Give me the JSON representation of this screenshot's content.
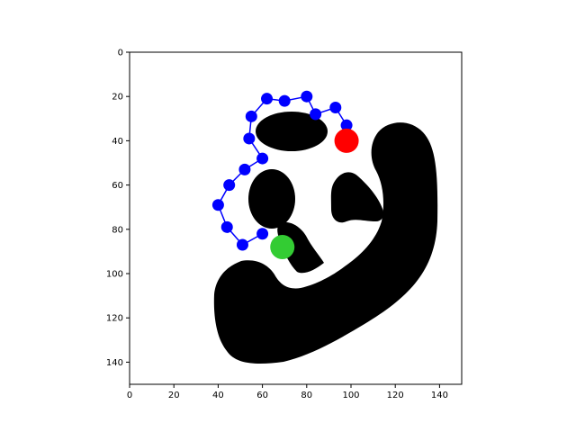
{
  "chart_data": {
    "type": "scatter",
    "title": "",
    "xlabel": "",
    "ylabel": "",
    "xlim": [
      0,
      150
    ],
    "ylim": [
      150,
      0
    ],
    "y_inverted": true,
    "grid": false,
    "x_ticks": [
      "0",
      "20",
      "40",
      "60",
      "80",
      "100",
      "120",
      "140"
    ],
    "y_ticks": [
      "0",
      "20",
      "40",
      "60",
      "80",
      "100",
      "120",
      "140"
    ],
    "background_image": "binary black shape on white (occupancy map)",
    "path": {
      "color": "#0000ff",
      "points": [
        [
          98,
          33
        ],
        [
          93,
          25
        ],
        [
          84,
          28
        ],
        [
          80,
          20
        ],
        [
          70,
          22
        ],
        [
          62,
          21
        ],
        [
          55,
          29
        ],
        [
          54,
          39
        ],
        [
          60,
          48
        ],
        [
          52,
          53
        ],
        [
          45,
          60
        ],
        [
          40,
          69
        ],
        [
          44,
          79
        ],
        [
          51,
          87
        ],
        [
          60,
          82
        ]
      ]
    },
    "start": {
      "x": 98,
      "y": 40,
      "color": "#ff0000"
    },
    "goal": {
      "x": 69,
      "y": 88,
      "color": "#33cc33"
    }
  }
}
